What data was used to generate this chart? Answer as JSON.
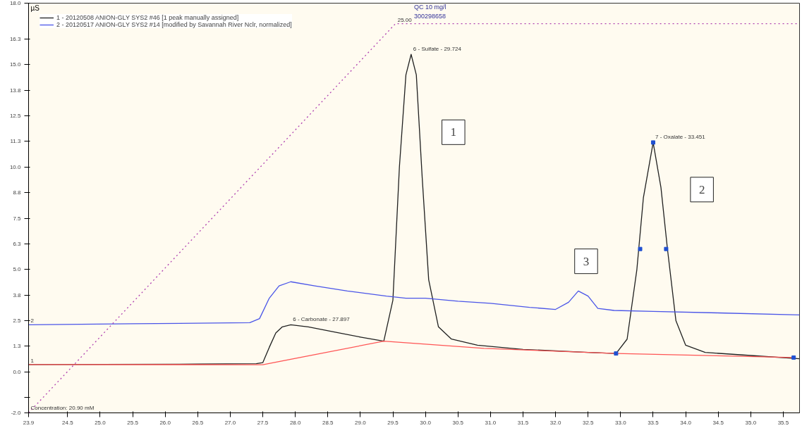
{
  "chart_data": {
    "type": "line",
    "ylabel": "µS",
    "xlim": [
      23.9,
      35.75
    ],
    "ylim": [
      -2.0,
      18.0
    ],
    "xticks": [
      23.9,
      24.5,
      {
        "value": 25,
        "label": "25.0"
      },
      25.5,
      {
        "value": 26,
        "label": "26.0"
      },
      26.5,
      {
        "value": 27,
        "label": "27.0"
      },
      27.5,
      {
        "value": 28,
        "label": "28.0"
      },
      28.5,
      {
        "value": 29,
        "label": "29.0"
      },
      29.5,
      {
        "value": 30,
        "label": "30.0"
      },
      30.5,
      {
        "value": 31,
        "label": "31.0"
      },
      31.5,
      {
        "value": 32,
        "label": "32.0"
      },
      32.5,
      {
        "value": 33,
        "label": "33.0"
      },
      33.5,
      {
        "value": 34,
        "label": "34.0"
      },
      34.5,
      {
        "value": 35,
        "label": "35.0"
      },
      35.5
    ],
    "yticks": [
      {
        "value": -2.0,
        "label": "-2.0"
      },
      {
        "value": -1.25,
        "label": null
      },
      {
        "value": 0.0,
        "label": "0.0"
      },
      {
        "value": 1.25,
        "label": "1.3"
      },
      {
        "value": 2.5,
        "label": "2.5"
      },
      {
        "value": 3.75,
        "label": "3.8"
      },
      {
        "value": 5.0,
        "label": "5.0"
      },
      {
        "value": 6.25,
        "label": "6.3"
      },
      {
        "value": 7.5,
        "label": "7.5"
      },
      {
        "value": 8.75,
        "label": "8.8"
      },
      {
        "value": 10.0,
        "label": "10.0"
      },
      {
        "value": 11.25,
        "label": "11.3"
      },
      {
        "value": 12.5,
        "label": "12.5"
      },
      {
        "value": 13.75,
        "label": "13.8"
      },
      {
        "value": 15.0,
        "label": "15.0"
      },
      {
        "value": 16.25,
        "label": "16.3"
      },
      {
        "value": 18.0,
        "label": "18.0"
      }
    ],
    "grid": false,
    "legend": "top left",
    "marker": "none",
    "line_style": "solid",
    "series": [
      {
        "name": "1 - 20120508 ANION-GLY SYS2 #46 [1 peak manually assigned]",
        "color": "#202020",
        "x": [
          23.9,
          25.0,
          26.5,
          27.4,
          27.5,
          27.6,
          27.7,
          27.8,
          27.93,
          28.2,
          28.6,
          29.0,
          29.36,
          29.5,
          29.6,
          29.7,
          29.78,
          29.86,
          29.95,
          30.05,
          30.2,
          30.4,
          30.8,
          31.5,
          32.5,
          32.93,
          33.1,
          33.25,
          33.35,
          33.5,
          33.62,
          33.72,
          33.85,
          34.0,
          34.3,
          35.0,
          35.75
        ],
        "values": [
          0.36,
          0.37,
          0.38,
          0.4,
          0.45,
          1.2,
          1.9,
          2.2,
          2.3,
          2.2,
          1.95,
          1.7,
          1.5,
          3.5,
          10.0,
          14.5,
          15.5,
          14.5,
          9.5,
          4.5,
          2.2,
          1.6,
          1.3,
          1.1,
          0.95,
          0.9,
          1.6,
          5.0,
          8.5,
          11.2,
          9.0,
          6.0,
          2.5,
          1.3,
          0.95,
          0.8,
          0.64
        ]
      },
      {
        "name": "2 - 20120517 ANION-GLY SYS2 #14 [modified by Savannah River Nclr, normalized]",
        "color": "#4a55e8",
        "x": [
          23.9,
          25.5,
          27.3,
          27.45,
          27.6,
          27.75,
          27.93,
          28.3,
          28.8,
          29.4,
          29.7,
          30.0,
          30.5,
          31.0,
          31.6,
          32.0,
          32.2,
          32.35,
          32.5,
          32.65,
          32.9,
          33.5,
          34.5,
          35.75
        ],
        "values": [
          2.3,
          2.35,
          2.4,
          2.6,
          3.6,
          4.2,
          4.4,
          4.2,
          3.95,
          3.7,
          3.6,
          3.6,
          3.45,
          3.35,
          3.15,
          3.05,
          3.4,
          3.95,
          3.7,
          3.1,
          3.0,
          2.95,
          2.88,
          2.78
        ]
      },
      {
        "type": "line",
        "color": "#ff5555",
        "x": [
          23.9,
          24.1,
          27.5,
          29.36,
          30.9,
          32.93,
          35.66
        ],
        "values": [
          0.36,
          0.36,
          0.35,
          1.5,
          1.15,
          0.9,
          0.7
        ]
      },
      {
        "type": "line",
        "color": "#b040b0",
        "line_style": "dotted",
        "x": [
          23.9,
          29.54,
          35.75
        ],
        "values": [
          -2.0,
          17.0,
          17.0
        ]
      },
      {
        "type": "scatter",
        "marker": "square",
        "color": "#2050d0",
        "x": [
          32.93,
          33.3,
          33.5,
          33.7,
          35.66
        ],
        "values": [
          0.9,
          6.0,
          11.2,
          6.0,
          0.7
        ]
      }
    ],
    "annotations": [
      "QC 10 mg/l",
      "300298658",
      {
        "text": "6 - Sulfate - 29.724",
        "x": 29.78,
        "y": 15.5
      },
      {
        "text": "7 - Oxalate - 33.451",
        "x": 33.5,
        "y": 11.2
      },
      {
        "text": "6 - Carbonate - 27.897",
        "x": 27.93,
        "y": 2.3
      },
      {
        "text": "25.00",
        "x": 29.54,
        "y": 17.0
      },
      {
        "text": "Concentration: 20.90 mM",
        "x": 23.9,
        "y": -2.0
      },
      {
        "text": "1",
        "x": 23.9,
        "y": 0.36
      },
      {
        "text": "2",
        "x": 23.9,
        "y": 2.3
      },
      {
        "text": "1",
        "x": 30.43,
        "y": 11.7
      },
      {
        "text": "2",
        "x": 34.25,
        "y": 8.9
      },
      {
        "text": "3",
        "x": 32.47,
        "y": 5.4
      }
    ]
  }
}
